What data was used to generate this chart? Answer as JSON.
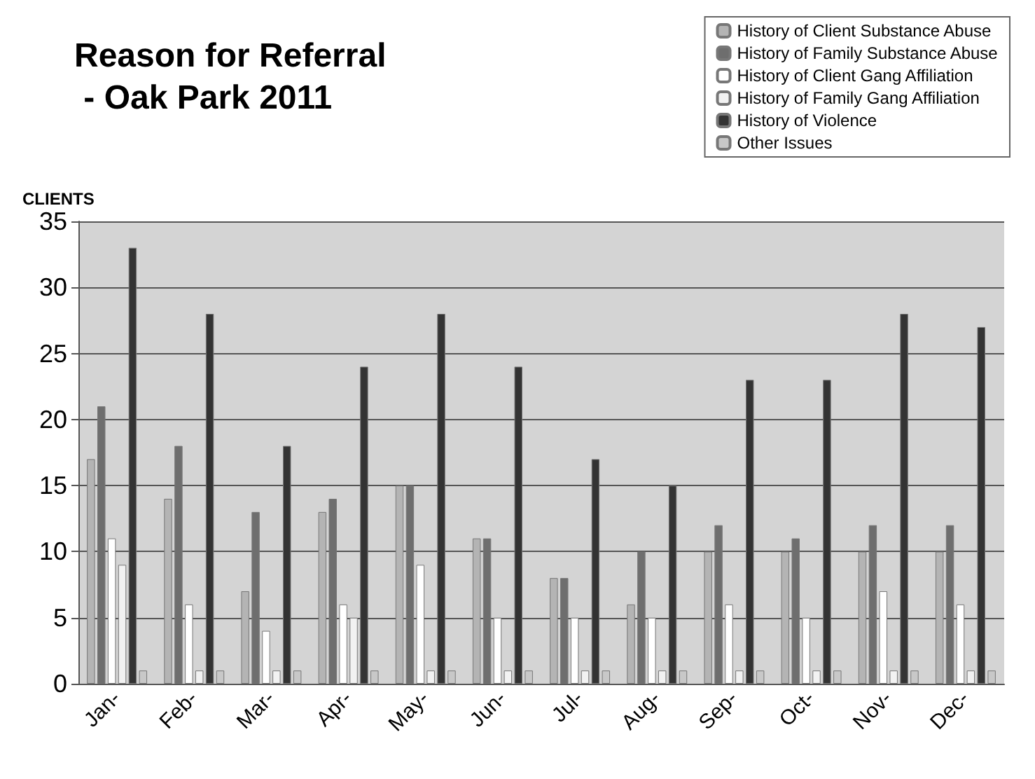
{
  "chart_data": {
    "type": "bar",
    "title": "Reason for Referral\n - Oak Park 2011",
    "ylabel": "CLIENTS",
    "categories": [
      "Jan-",
      "Feb-",
      "Mar-",
      "Apr-",
      "May-",
      "Jun-",
      "Jul-",
      "Aug-",
      "Sep-",
      "Oct-",
      "Nov-",
      "Dec-"
    ],
    "series": [
      {
        "name": "History of Client Substance Abuse",
        "color": "#b4b4b4",
        "values": [
          17,
          14,
          7,
          13,
          15,
          11,
          8,
          6,
          10,
          10,
          10,
          10
        ]
      },
      {
        "name": "History of Family Substance Abuse",
        "color": "#6e6e6e",
        "values": [
          21,
          18,
          13,
          14,
          15,
          11,
          8,
          10,
          12,
          11,
          12,
          12
        ]
      },
      {
        "name": "History of Client Gang Affiliation",
        "color": "#ffffff",
        "values": [
          11,
          6,
          4,
          6,
          9,
          5,
          5,
          5,
          6,
          5,
          7,
          6
        ]
      },
      {
        "name": "History of Family Gang Affiliation",
        "color": "#f2f2f2",
        "values": [
          9,
          1,
          1,
          5,
          1,
          1,
          1,
          1,
          1,
          1,
          1,
          1
        ]
      },
      {
        "name": "History of Violence",
        "color": "#333333",
        "values": [
          33,
          28,
          18,
          24,
          28,
          24,
          17,
          15,
          23,
          23,
          28,
          27
        ]
      },
      {
        "name": "Other Issues",
        "color": "#c8c8c8",
        "values": [
          1,
          1,
          1,
          1,
          1,
          1,
          1,
          1,
          1,
          1,
          1,
          1
        ]
      }
    ],
    "ylim": [
      0,
      35
    ],
    "yticks": [
      0,
      5,
      10,
      15,
      20,
      25,
      30,
      35
    ],
    "grid": "y",
    "legend": "top right"
  }
}
